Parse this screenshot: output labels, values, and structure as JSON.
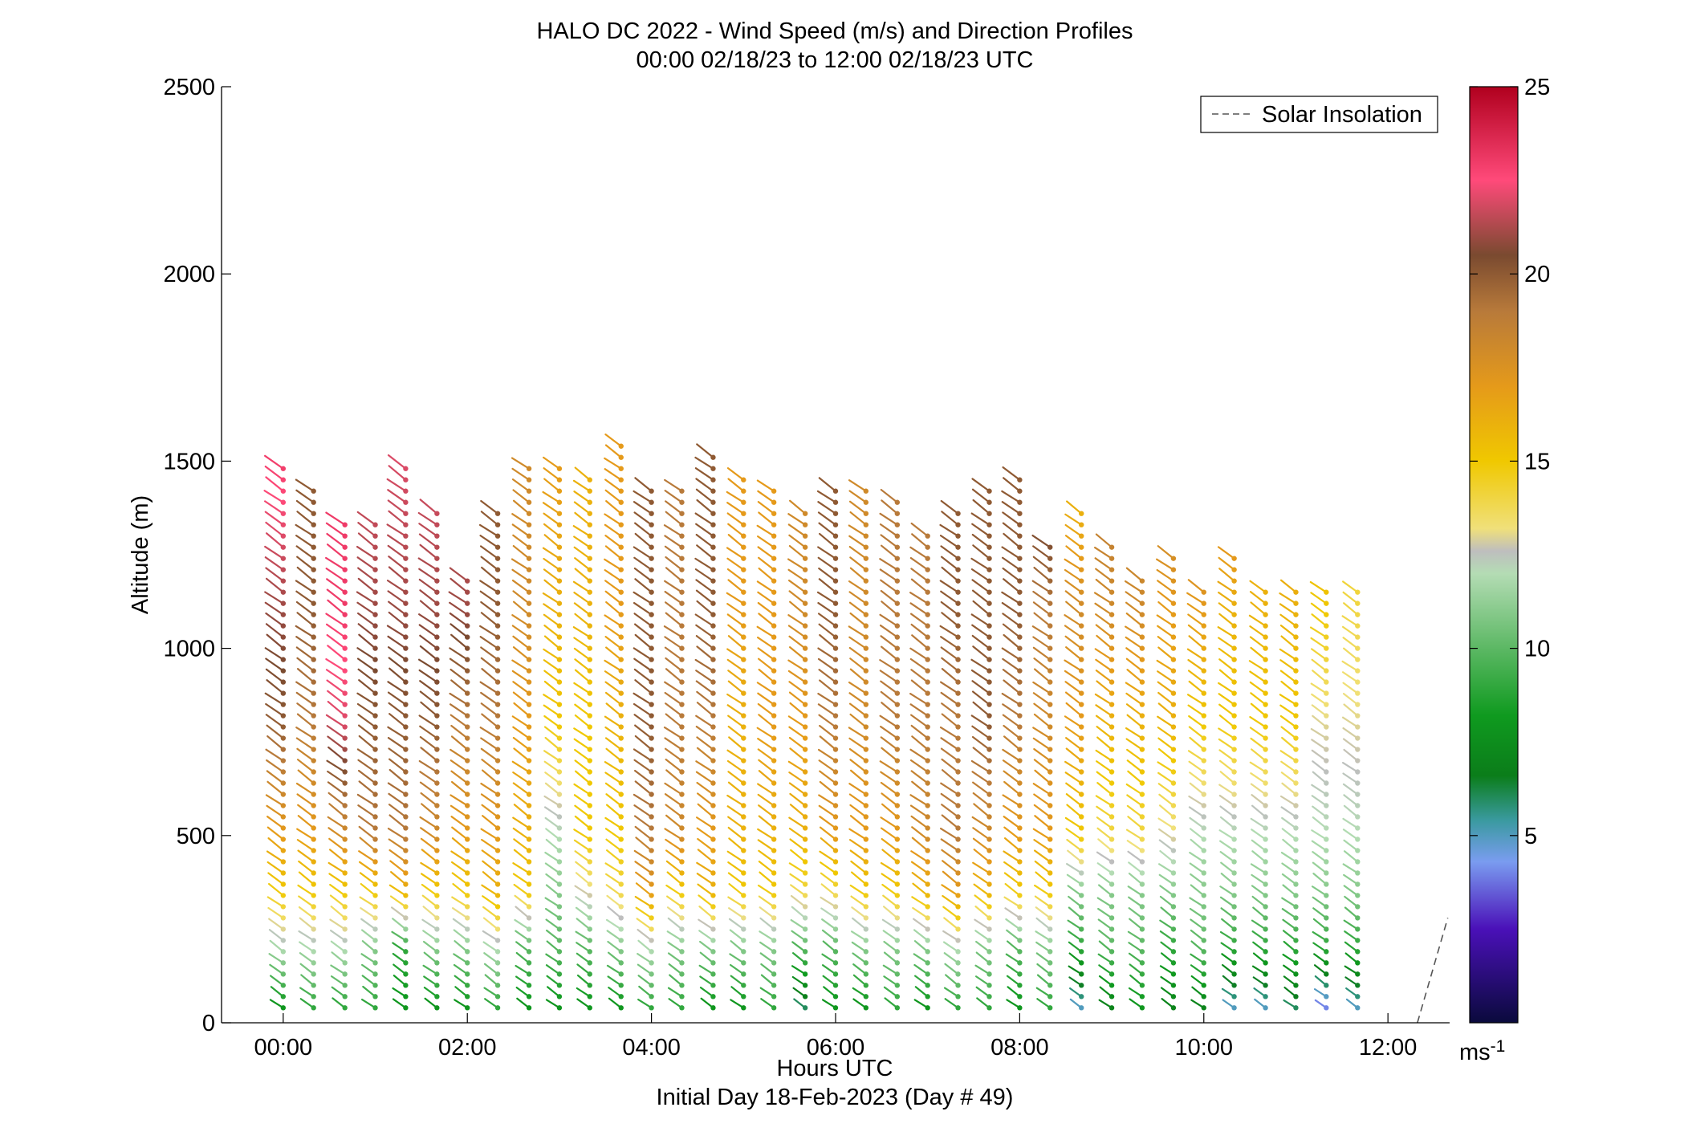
{
  "chart_data": {
    "type": "scatter",
    "title": "HALO DC 2022 - Wind Speed (m/s) and Direction Profiles",
    "subtitle": "00:00 02/18/23 to 12:00 02/18/23  UTC",
    "xlabel": "Hours UTC",
    "xlabel2": "Initial Day 18-Feb-2023 (Day # 49)",
    "ylabel": "Altitude (m)",
    "xlim": [
      -0.67,
      12.67
    ],
    "ylim": [
      0,
      2500
    ],
    "x_ticks": [
      {
        "value": 0,
        "label": "00:00"
      },
      {
        "value": 2,
        "label": "02:00"
      },
      {
        "value": 4,
        "label": "04:00"
      },
      {
        "value": 6,
        "label": "06:00"
      },
      {
        "value": 8,
        "label": "08:00"
      },
      {
        "value": 10,
        "label": "10:00"
      },
      {
        "value": 12,
        "label": "12:00"
      }
    ],
    "y_ticks": [
      {
        "value": 0,
        "label": "0"
      },
      {
        "value": 500,
        "label": "500"
      },
      {
        "value": 1000,
        "label": "1000"
      },
      {
        "value": 1500,
        "label": "1500"
      },
      {
        "value": 2000,
        "label": "2000"
      },
      {
        "value": 2500,
        "label": "2500"
      }
    ],
    "colorbar": {
      "range": [
        0,
        25
      ],
      "unit": "ms-1",
      "ticks": [
        {
          "value": 5,
          "label": "5"
        },
        {
          "value": 10,
          "label": "10"
        },
        {
          "value": 15,
          "label": "15"
        },
        {
          "value": 20,
          "label": "20"
        },
        {
          "value": 25,
          "label": "25"
        }
      ],
      "stops": [
        {
          "v": 0,
          "c": "#0a0a3c"
        },
        {
          "v": 2.5,
          "c": "#4a10b8"
        },
        {
          "v": 4.3,
          "c": "#7a9cf0"
        },
        {
          "v": 5.4,
          "c": "#3a9aa0"
        },
        {
          "v": 6.6,
          "c": "#0b7d1a"
        },
        {
          "v": 8.2,
          "c": "#0f9a1f"
        },
        {
          "v": 10,
          "c": "#5cb864"
        },
        {
          "v": 12,
          "c": "#b4dcb4"
        },
        {
          "v": 12.6,
          "c": "#bebebe"
        },
        {
          "v": 13.2,
          "c": "#f0e07a"
        },
        {
          "v": 15,
          "c": "#f0c800"
        },
        {
          "v": 17,
          "c": "#e59a1a"
        },
        {
          "v": 19,
          "c": "#b87a3a"
        },
        {
          "v": 20.5,
          "c": "#7a4a30"
        },
        {
          "v": 22.5,
          "c": "#ff4a7a"
        },
        {
          "v": 25,
          "c": "#b0001e"
        }
      ]
    },
    "legend": {
      "position": "top-right",
      "entries": [
        {
          "label": "Solar Insolation",
          "style": "dashed",
          "color": "#555555"
        }
      ]
    },
    "solar_insolation": {
      "x": [
        12.32,
        12.65
      ],
      "y": [
        0,
        280
      ]
    },
    "profiles": [
      {
        "t": 0.0,
        "top": 1480,
        "speeds": [
          8,
          12,
          15,
          17,
          20,
          21,
          23
        ]
      },
      {
        "t": 0.33,
        "top": 1440,
        "speeds": [
          9,
          12,
          15,
          17,
          19,
          20,
          20
        ]
      },
      {
        "t": 0.67,
        "top": 1330,
        "speeds": [
          9,
          12,
          15,
          18,
          22,
          23,
          23
        ]
      },
      {
        "t": 1.0,
        "top": 1350,
        "speeds": [
          9,
          11,
          15,
          19,
          20,
          21,
          22
        ]
      },
      {
        "t": 1.33,
        "top": 1480,
        "speeds": [
          8,
          9,
          16,
          19,
          20,
          21,
          22
        ]
      },
      {
        "t": 1.67,
        "top": 1370,
        "speeds": [
          8,
          11,
          15,
          18,
          20,
          21,
          22
        ]
      },
      {
        "t": 2.0,
        "top": 1200,
        "speeds": [
          8,
          11,
          15,
          17,
          19,
          21,
          22
        ]
      },
      {
        "t": 2.33,
        "top": 1360,
        "speeds": [
          9,
          12,
          16,
          17,
          19,
          20,
          20
        ]
      },
      {
        "t": 2.67,
        "top": 1480,
        "speeds": [
          8,
          10,
          15,
          16,
          17,
          18,
          18
        ]
      },
      {
        "t": 3.0,
        "top": 1500,
        "speeds": [
          8,
          10,
          11,
          12,
          15,
          16,
          17
        ]
      },
      {
        "t": 3.33,
        "top": 1470,
        "speeds": [
          8,
          10,
          13,
          15,
          15,
          16,
          16
        ]
      },
      {
        "t": 3.67,
        "top": 1560,
        "speeds": [
          8,
          11,
          14,
          15,
          16,
          17,
          17
        ]
      },
      {
        "t": 4.0,
        "top": 1440,
        "speeds": [
          9,
          12,
          17,
          19,
          20,
          20,
          20
        ]
      },
      {
        "t": 4.33,
        "top": 1440,
        "speeds": [
          9,
          11,
          15,
          18,
          19,
          19,
          19
        ]
      },
      {
        "t": 4.67,
        "top": 1520,
        "speeds": [
          8,
          11,
          16,
          17,
          19,
          20,
          20
        ]
      },
      {
        "t": 5.0,
        "top": 1470,
        "speeds": [
          8,
          11,
          15,
          16,
          16,
          17,
          17
        ]
      },
      {
        "t": 5.33,
        "top": 1440,
        "speeds": [
          9,
          11,
          15,
          16,
          17,
          17,
          17
        ]
      },
      {
        "t": 5.67,
        "top": 1360,
        "speeds": [
          6,
          10,
          14,
          16,
          17,
          18,
          18
        ]
      },
      {
        "t": 6.0,
        "top": 1440,
        "speeds": [
          8,
          10,
          14,
          17,
          19,
          20,
          20
        ]
      },
      {
        "t": 6.33,
        "top": 1430,
        "speeds": [
          8,
          11,
          15,
          17,
          18,
          18,
          18
        ]
      },
      {
        "t": 6.67,
        "top": 1400,
        "speeds": [
          9,
          11,
          15,
          17,
          19,
          19,
          19
        ]
      },
      {
        "t": 7.0,
        "top": 1320,
        "speeds": [
          8,
          11,
          16,
          18,
          19,
          19,
          19
        ]
      },
      {
        "t": 7.33,
        "top": 1360,
        "speeds": [
          9,
          12,
          17,
          19,
          19,
          20,
          20
        ]
      },
      {
        "t": 7.67,
        "top": 1440,
        "speeds": [
          9,
          11,
          16,
          18,
          20,
          20,
          20
        ]
      },
      {
        "t": 8.0,
        "top": 1450,
        "speeds": [
          8,
          10,
          15,
          17,
          19,
          20,
          20
        ]
      },
      {
        "t": 8.33,
        "top": 1290,
        "speeds": [
          9,
          11,
          15,
          17,
          18,
          19,
          22
        ]
      },
      {
        "t": 8.67,
        "top": 1370,
        "speeds": [
          5,
          9,
          11,
          15,
          17,
          18,
          15
        ]
      },
      {
        "t": 9.0,
        "top": 1280,
        "speeds": [
          7,
          10,
          11,
          14,
          16,
          18,
          19
        ]
      },
      {
        "t": 9.33,
        "top": 1200,
        "speeds": [
          8,
          10,
          11,
          14,
          16,
          18,
          19
        ]
      },
      {
        "t": 9.67,
        "top": 1240,
        "speeds": [
          7,
          9,
          11,
          13,
          16,
          17,
          19
        ]
      },
      {
        "t": 10.0,
        "top": 1160,
        "speeds": [
          7,
          10,
          11,
          12,
          15,
          17,
          20
        ]
      },
      {
        "t": 10.33,
        "top": 1240,
        "speeds": [
          5,
          9,
          11,
          12,
          15,
          16,
          19
        ]
      },
      {
        "t": 10.67,
        "top": 1160,
        "speeds": [
          5,
          9,
          11,
          12,
          15,
          16,
          16
        ]
      },
      {
        "t": 11.0,
        "top": 1160,
        "speeds": [
          6,
          9,
          11,
          12,
          15,
          16,
          17
        ]
      },
      {
        "t": 11.33,
        "top": 1160,
        "speeds": [
          4,
          9,
          11,
          12,
          13,
          15,
          17
        ]
      },
      {
        "t": 11.67,
        "top": 1160,
        "speeds": [
          5,
          9,
          11,
          12,
          13,
          14,
          15
        ]
      }
    ]
  }
}
